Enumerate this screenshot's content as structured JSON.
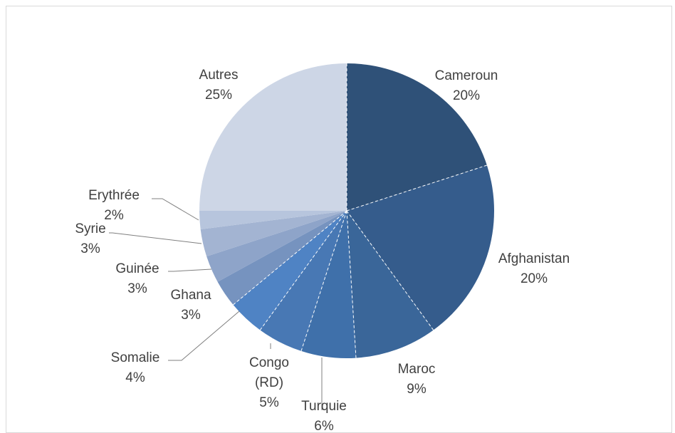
{
  "chart_data": {
    "type": "pie",
    "title": "",
    "slices": [
      {
        "label": "Cameroun",
        "value": 20,
        "value_label": "20%",
        "color": "#2f5178"
      },
      {
        "label": "Afghanistan",
        "value": 20,
        "value_label": "20%",
        "color": "#355c8c"
      },
      {
        "label": "Maroc",
        "value": 9,
        "value_label": "9%",
        "color": "#3a6699"
      },
      {
        "label": "Turquie",
        "value": 6,
        "value_label": "6%",
        "color": "#3f70aa"
      },
      {
        "label": "Congo (RD)",
        "value": 5,
        "value_label": "5%",
        "color": "#4878b4"
      },
      {
        "label": "Somalie",
        "value": 4,
        "value_label": "4%",
        "color": "#4f83c4"
      },
      {
        "label": "Ghana",
        "value": 3,
        "value_label": "3%",
        "color": "#7693bf"
      },
      {
        "label": "Guinée",
        "value": 3,
        "value_label": "3%",
        "color": "#8ea4c9"
      },
      {
        "label": "Syrie",
        "value": 3,
        "value_label": "3%",
        "color": "#a3b4d2"
      },
      {
        "label": "Erythrée",
        "value": 2,
        "value_label": "2%",
        "color": "#b7c5dd"
      },
      {
        "label": "Autres",
        "value": 25,
        "value_label": "25%",
        "color": "#cdd6e6"
      }
    ],
    "legend": "none",
    "start_angle": "12 o'clock, clockwise"
  }
}
